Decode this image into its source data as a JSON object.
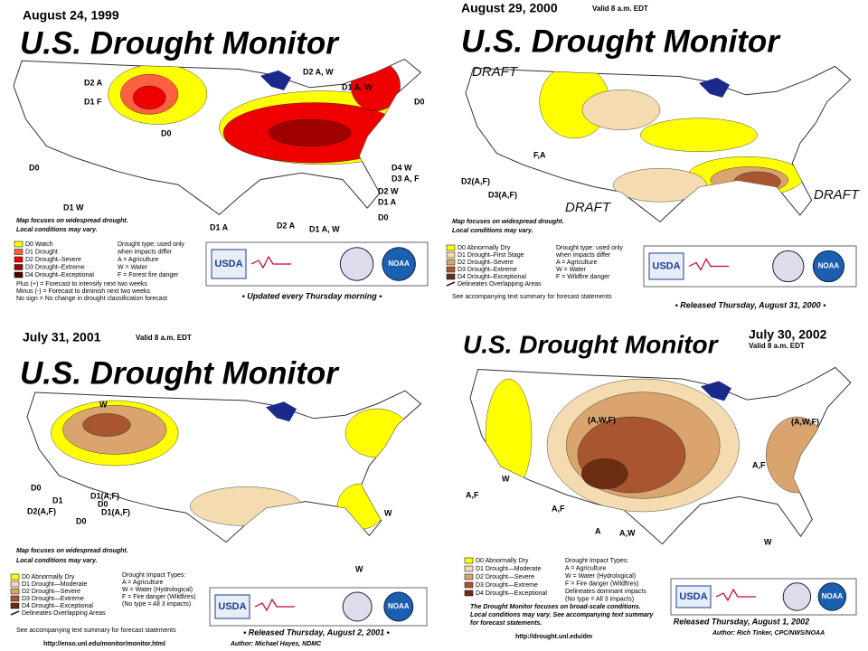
{
  "panels": [
    {
      "date": "August 24, 1999",
      "title": "U.S. Drought Monitor",
      "map_labels": [
        "D2 A",
        "D1 F",
        "D0",
        "D0",
        "D1 W",
        "D2 A, W",
        "D1 A, W",
        "D0",
        "D4 W",
        "D3 A, F",
        "D2 W",
        "D1 A",
        "D0",
        "D1 A",
        "D2 A",
        "D1 A, W"
      ],
      "notes": [
        "Map focuses on widespread drought.",
        "Local conditions may vary."
      ],
      "legend": [
        {
          "label": "D0  Watch",
          "color": "#ffff00"
        },
        {
          "label": "D1  Drought",
          "color": "#ff6040"
        },
        {
          "label": "D2  Drought–Severe",
          "color": "#ee0000"
        },
        {
          "label": "D3  Drought–Extreme",
          "color": "#a00000"
        },
        {
          "label": "D4  Drought–Exceptional",
          "color": "#500000"
        }
      ],
      "impacts": [
        "Drought type: used only",
        "when impacts differ",
        "A = Agriculture",
        "W = Water",
        "F = Forest fire danger"
      ],
      "forecast": [
        "Plus (+) = Forecast to intensify next two weeks",
        "Minus (-) = Forecast to diminish next two weeks",
        "No sign = No change in drought classification forecast"
      ],
      "logos": [
        "USDA",
        "NOAA"
      ],
      "footer": "• Updated every Thursday morning •"
    },
    {
      "date": "August 29, 2000",
      "valid": "Valid 8 a.m. EDT",
      "title": "U.S. Drought Monitor",
      "map_labels": [
        "DRAFT",
        "DRAFT",
        "DRAFT",
        "F,A",
        "D2(A,F)",
        "D3(A,F)"
      ],
      "notes": [
        "Map focuses on widespread drought.",
        "Local conditions may vary."
      ],
      "legend": [
        {
          "label": "D0 Abnormally Dry",
          "color": "#ffff00"
        },
        {
          "label": "D1 Drought–First Stage",
          "color": "#f5dcb0"
        },
        {
          "label": "D2 Drought–Severe",
          "color": "#d9a46e"
        },
        {
          "label": "D3 Drought–Extreme",
          "color": "#a85530"
        },
        {
          "label": "D4 Drought–Exceptional",
          "color": "#6b2c12"
        },
        {
          "label": "Delineates Overlapping Areas"
        }
      ],
      "impacts": [
        "Drought type: used only",
        "when impacts differ",
        "A = Agriculture",
        "W = Water",
        "F = Wildfire danger"
      ],
      "forecast": [
        "See accompanying text summary for forecast statements"
      ],
      "logos": [
        "USDA",
        "NOAA"
      ],
      "footer": "• Released Thursday, August 31, 2000 •"
    },
    {
      "date": "July 31, 2001",
      "valid": "Valid 8 a.m. EDT",
      "title": "U.S. Drought Monitor",
      "map_labels": [
        "W",
        "D0",
        "D1",
        "D1(A,F)",
        "D0",
        "D2(A,F)",
        "D1(A,F)",
        "D0",
        "W",
        "W"
      ],
      "notes": [
        "Map focuses on widespread drought.",
        "Local conditions may vary."
      ],
      "legend": [
        {
          "label": "D0 Abnormally Dry",
          "color": "#ffff00"
        },
        {
          "label": "D1 Drought—Moderate",
          "color": "#f5dcb0"
        },
        {
          "label": "D2 Drought—Severe",
          "color": "#d9a46e"
        },
        {
          "label": "D3 Drought—Extreme",
          "color": "#a85530"
        },
        {
          "label": "D4 Drought—Exceptional",
          "color": "#6b2c12"
        },
        {
          "label": "Delineates Overlapping Areas"
        }
      ],
      "impacts": [
        "Drought Impact Types:",
        "A = Agriculture",
        "W = Water (Hydrological)",
        "F = Fire danger (Wildfires)",
        "(No type = All 3 impacts)"
      ],
      "forecast": [
        "See accompanying text summary for forecast statements"
      ],
      "logos": [
        "USDA",
        "NOAA"
      ],
      "footer": "• Released Thursday, August 2, 2001 •",
      "author": "Author:  Michael Hayes, NDMC",
      "url": "http://enso.unl.edu/monitor/monitor.html"
    },
    {
      "date": "July 30, 2002",
      "valid": "Valid 8 a.m. EDT",
      "title": "U.S. Drought Monitor",
      "map_labels": [
        "(A,W,F)",
        "A,F",
        "W",
        "A,F",
        "A,F",
        "A",
        "A,W",
        "(A,W,F)",
        "W"
      ],
      "notes": [
        "The Drought Monitor focuses on broad-scale conditions.",
        "Local conditions may vary. See accompanying text summary",
        "for forecast statements."
      ],
      "legend": [
        {
          "label": "D0 Abnormally Dry",
          "color": "#ffff00"
        },
        {
          "label": "D1 Drought—Moderate",
          "color": "#f5dcb0"
        },
        {
          "label": "D2 Drought—Severe",
          "color": "#d9a46e"
        },
        {
          "label": "D3 Drought—Extreme",
          "color": "#a85530"
        },
        {
          "label": "D4 Drought—Exceptional",
          "color": "#6b2c12"
        }
      ],
      "impacts": [
        "Drought Impact Types:",
        "A = Agriculture",
        "W = Water (Hydrological)",
        "F = Fire danger (Wildfires)",
        "Delineates dominant impacts",
        "(No type = All 3 impacts)"
      ],
      "logos": [
        "USDA",
        "NOAA"
      ],
      "footer": "Released Thursday, August 1, 2002",
      "author": "Author:  Rich Tinker, CPC/NWS/NOAA",
      "url": "http://drought.unl.edu/dm"
    }
  ]
}
